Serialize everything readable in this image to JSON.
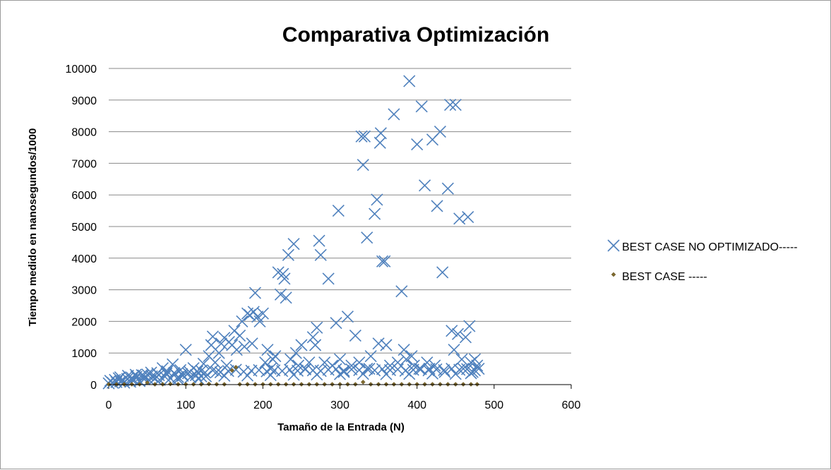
{
  "chart_data": {
    "type": "scatter",
    "title": "Comparativa Optimización",
    "xlabel": "Tamaño  de la Entrada (N)",
    "ylabel": "Tiempo medido en nanosegundos/1000",
    "xlim": [
      0,
      600
    ],
    "ylim": [
      0,
      10000
    ],
    "x_ticks": [
      "0",
      "100",
      "200",
      "300",
      "400",
      "500",
      "600"
    ],
    "y_ticks": [
      "0",
      "1000",
      "2000",
      "3000",
      "4000",
      "5000",
      "6000",
      "7000",
      "8000",
      "9000",
      "10000"
    ],
    "grid": true,
    "legend_position": "right",
    "series": [
      {
        "name": "BEST CASE NO OPTIMIZADO-----",
        "marker": "x",
        "color": "#4f81bd",
        "points": [
          [
            0,
            40
          ],
          [
            2,
            120
          ],
          [
            5,
            60
          ],
          [
            8,
            150
          ],
          [
            10,
            80
          ],
          [
            13,
            200
          ],
          [
            15,
            100
          ],
          [
            18,
            130
          ],
          [
            20,
            60
          ],
          [
            24,
            180
          ],
          [
            28,
            90
          ],
          [
            30,
            220
          ],
          [
            33,
            140
          ],
          [
            36,
            250
          ],
          [
            40,
            110
          ],
          [
            43,
            300
          ],
          [
            46,
            170
          ],
          [
            50,
            320
          ],
          [
            53,
            130
          ],
          [
            56,
            260
          ],
          [
            60,
            190
          ],
          [
            63,
            360
          ],
          [
            66,
            150
          ],
          [
            70,
            520
          ],
          [
            73,
            250
          ],
          [
            76,
            420
          ],
          [
            80,
            200
          ],
          [
            83,
            640
          ],
          [
            86,
            330
          ],
          [
            90,
            170
          ],
          [
            93,
            460
          ],
          [
            96,
            280
          ],
          [
            100,
            1100
          ],
          [
            103,
            360
          ],
          [
            106,
            230
          ],
          [
            110,
            520
          ],
          [
            113,
            300
          ],
          [
            116,
            190
          ],
          [
            120,
            440
          ],
          [
            123,
            660
          ],
          [
            126,
            260
          ],
          [
            130,
            900
          ],
          [
            133,
            1250
          ],
          [
            135,
            1520
          ],
          [
            138,
            700
          ],
          [
            140,
            400
          ],
          [
            143,
            1000
          ],
          [
            146,
            1300
          ],
          [
            150,
            1480
          ],
          [
            153,
            600
          ],
          [
            156,
            1350
          ],
          [
            160,
            1250
          ],
          [
            163,
            1700
          ],
          [
            166,
            1100
          ],
          [
            170,
            1550
          ],
          [
            173,
            2000
          ],
          [
            176,
            1200
          ],
          [
            180,
            2250
          ],
          [
            183,
            2200
          ],
          [
            186,
            1300
          ],
          [
            188,
            2300
          ],
          [
            190,
            2900
          ],
          [
            193,
            2150
          ],
          [
            196,
            2000
          ],
          [
            200,
            2250
          ],
          [
            203,
            700
          ],
          [
            206,
            1100
          ],
          [
            210,
            500
          ],
          [
            213,
            800
          ],
          [
            216,
            900
          ],
          [
            220,
            3550
          ],
          [
            223,
            2850
          ],
          [
            226,
            3500
          ],
          [
            228,
            3350
          ],
          [
            230,
            2750
          ],
          [
            233,
            4100
          ],
          [
            236,
            800
          ],
          [
            240,
            4450
          ],
          [
            243,
            1000
          ],
          [
            246,
            600
          ],
          [
            250,
            1250
          ],
          [
            255,
            500
          ],
          [
            260,
            700
          ],
          [
            265,
            1500
          ],
          [
            268,
            1250
          ],
          [
            270,
            1800
          ],
          [
            273,
            4550
          ],
          [
            275,
            4100
          ],
          [
            280,
            700
          ],
          [
            285,
            3350
          ],
          [
            290,
            600
          ],
          [
            295,
            1950
          ],
          [
            298,
            5500
          ],
          [
            300,
            800
          ],
          [
            305,
            400
          ],
          [
            310,
            2150
          ],
          [
            315,
            600
          ],
          [
            320,
            1550
          ],
          [
            325,
            700
          ],
          [
            328,
            7850
          ],
          [
            330,
            6950
          ],
          [
            332,
            7850
          ],
          [
            335,
            4650
          ],
          [
            338,
            500
          ],
          [
            340,
            900
          ],
          [
            345,
            5400
          ],
          [
            348,
            5850
          ],
          [
            350,
            1300
          ],
          [
            352,
            7650
          ],
          [
            353,
            7950
          ],
          [
            355,
            3900
          ],
          [
            358,
            3900
          ],
          [
            360,
            1250
          ],
          [
            365,
            600
          ],
          [
            370,
            8550
          ],
          [
            375,
            700
          ],
          [
            380,
            2950
          ],
          [
            383,
            1100
          ],
          [
            386,
            800
          ],
          [
            390,
            9600
          ],
          [
            393,
            900
          ],
          [
            396,
            600
          ],
          [
            400,
            7600
          ],
          [
            403,
            500
          ],
          [
            406,
            8800
          ],
          [
            410,
            6300
          ],
          [
            413,
            700
          ],
          [
            416,
            500
          ],
          [
            420,
            7750
          ],
          [
            423,
            600
          ],
          [
            426,
            5650
          ],
          [
            430,
            8000
          ],
          [
            433,
            3550
          ],
          [
            436,
            400
          ],
          [
            440,
            6200
          ],
          [
            443,
            8850
          ],
          [
            445,
            1700
          ],
          [
            448,
            1100
          ],
          [
            450,
            8850
          ],
          [
            453,
            1600
          ],
          [
            455,
            5250
          ],
          [
            458,
            800
          ],
          [
            460,
            500
          ],
          [
            463,
            1500
          ],
          [
            466,
            5300
          ],
          [
            468,
            1850
          ],
          [
            470,
            700
          ],
          [
            472,
            400
          ],
          [
            475,
            800
          ],
          [
            478,
            600
          ],
          [
            15,
            230
          ],
          [
            25,
            280
          ],
          [
            35,
            310
          ],
          [
            45,
            290
          ],
          [
            55,
            380
          ],
          [
            65,
            300
          ],
          [
            75,
            350
          ],
          [
            85,
            370
          ],
          [
            95,
            330
          ],
          [
            105,
            400
          ],
          [
            115,
            420
          ],
          [
            125,
            380
          ],
          [
            135,
            450
          ],
          [
            145,
            390
          ],
          [
            155,
            430
          ],
          [
            165,
            470
          ],
          [
            175,
            410
          ],
          [
            185,
            440
          ],
          [
            195,
            460
          ],
          [
            205,
            420
          ],
          [
            215,
            450
          ],
          [
            225,
            430
          ],
          [
            235,
            470
          ],
          [
            245,
            440
          ],
          [
            255,
            480
          ],
          [
            265,
            450
          ],
          [
            275,
            430
          ],
          [
            285,
            470
          ],
          [
            295,
            490
          ],
          [
            305,
            440
          ],
          [
            315,
            480
          ],
          [
            325,
            460
          ],
          [
            335,
            500
          ],
          [
            345,
            450
          ],
          [
            355,
            490
          ],
          [
            365,
            460
          ],
          [
            375,
            480
          ],
          [
            385,
            440
          ],
          [
            395,
            470
          ],
          [
            405,
            490
          ],
          [
            415,
            450
          ],
          [
            425,
            480
          ],
          [
            435,
            460
          ],
          [
            445,
            500
          ],
          [
            455,
            470
          ],
          [
            465,
            490
          ],
          [
            475,
            450
          ],
          [
            480,
            500
          ],
          [
            30,
            160
          ],
          [
            60,
            200
          ],
          [
            90,
            240
          ],
          [
            120,
            260
          ],
          [
            150,
            280
          ],
          [
            180,
            290
          ],
          [
            210,
            300
          ],
          [
            240,
            310
          ],
          [
            270,
            320
          ],
          [
            300,
            330
          ],
          [
            330,
            340
          ],
          [
            360,
            330
          ],
          [
            390,
            340
          ],
          [
            420,
            350
          ],
          [
            450,
            340
          ],
          [
            470,
            360
          ]
        ]
      },
      {
        "name": "BEST CASE -----",
        "marker": "diamond",
        "color": "#7f6a2e",
        "points": [
          [
            0,
            10
          ],
          [
            10,
            10
          ],
          [
            20,
            10
          ],
          [
            30,
            10
          ],
          [
            40,
            10
          ],
          [
            50,
            60
          ],
          [
            60,
            10
          ],
          [
            70,
            10
          ],
          [
            80,
            20
          ],
          [
            90,
            10
          ],
          [
            100,
            10
          ],
          [
            110,
            10
          ],
          [
            120,
            10
          ],
          [
            130,
            20
          ],
          [
            140,
            10
          ],
          [
            150,
            10
          ],
          [
            160,
            450
          ],
          [
            165,
            550
          ],
          [
            170,
            10
          ],
          [
            180,
            10
          ],
          [
            190,
            10
          ],
          [
            200,
            10
          ],
          [
            210,
            10
          ],
          [
            220,
            10
          ],
          [
            230,
            10
          ],
          [
            240,
            10
          ],
          [
            250,
            10
          ],
          [
            260,
            10
          ],
          [
            270,
            10
          ],
          [
            280,
            10
          ],
          [
            290,
            10
          ],
          [
            300,
            10
          ],
          [
            310,
            10
          ],
          [
            320,
            10
          ],
          [
            330,
            80
          ],
          [
            340,
            10
          ],
          [
            350,
            10
          ],
          [
            360,
            10
          ],
          [
            370,
            10
          ],
          [
            380,
            10
          ],
          [
            390,
            10
          ],
          [
            400,
            10
          ],
          [
            410,
            10
          ],
          [
            420,
            10
          ],
          [
            430,
            10
          ],
          [
            440,
            10
          ],
          [
            450,
            10
          ],
          [
            460,
            10
          ],
          [
            470,
            10
          ],
          [
            478,
            10
          ]
        ]
      }
    ]
  }
}
